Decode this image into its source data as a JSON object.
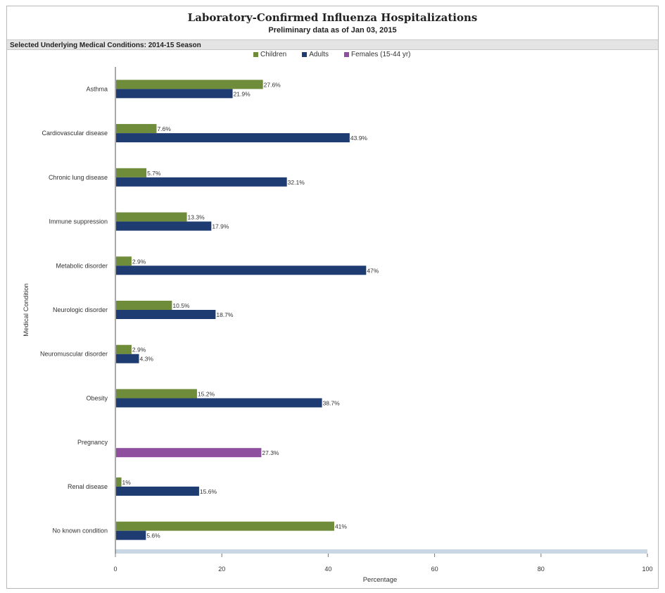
{
  "chart_data": {
    "type": "bar",
    "orientation": "horizontal",
    "title": "Laboratory-Confirmed Influenza Hospitalizations",
    "subtitle": "Preliminary data as of Jan 03, 2015",
    "section_label": "Selected Underlying Medical Conditions: 2014-15 Season",
    "xlabel": "Percentage",
    "ylabel": "Medical Condition",
    "xlim": [
      0,
      100
    ],
    "xticks": [
      "0",
      "20",
      "40",
      "60",
      "80",
      "100"
    ],
    "legend_position": "top",
    "categories": [
      "Asthma",
      "Cardiovascular disease",
      "Chronic lung disease",
      "Immune suppression",
      "Metabolic disorder",
      "Neurologic disorder",
      "Neuromuscular disorder",
      "Obesity",
      "Pregnancy",
      "Renal disease",
      "No known condition"
    ],
    "series": [
      {
        "name": "Children",
        "color": "#6f8c3a",
        "values": [
          27.6,
          7.6,
          5.7,
          13.3,
          2.9,
          10.5,
          2.9,
          15.2,
          null,
          1,
          41
        ],
        "labels": [
          "27.6%",
          "7.6%",
          "5.7%",
          "13.3%",
          "2.9%",
          "10.5%",
          "2.9%",
          "15.2%",
          "",
          "1%",
          "41%"
        ]
      },
      {
        "name": "Adults",
        "color": "#1f3c72",
        "values": [
          21.9,
          43.9,
          32.1,
          17.9,
          47,
          18.7,
          4.3,
          38.7,
          null,
          15.6,
          5.6
        ],
        "labels": [
          "21.9%",
          "43.9%",
          "32.1%",
          "17.9%",
          "47%",
          "18.7%",
          "4.3%",
          "38.7%",
          "",
          "15.6%",
          "5.6%"
        ]
      },
      {
        "name": "Females (15-44 yr)",
        "color": "#8e4f9e",
        "values": [
          null,
          null,
          null,
          null,
          null,
          null,
          null,
          null,
          27.3,
          null,
          null
        ],
        "labels": [
          "",
          "",
          "",
          "",
          "",
          "",
          "",
          "",
          "27.3%",
          "",
          ""
        ]
      }
    ],
    "grid": false
  }
}
